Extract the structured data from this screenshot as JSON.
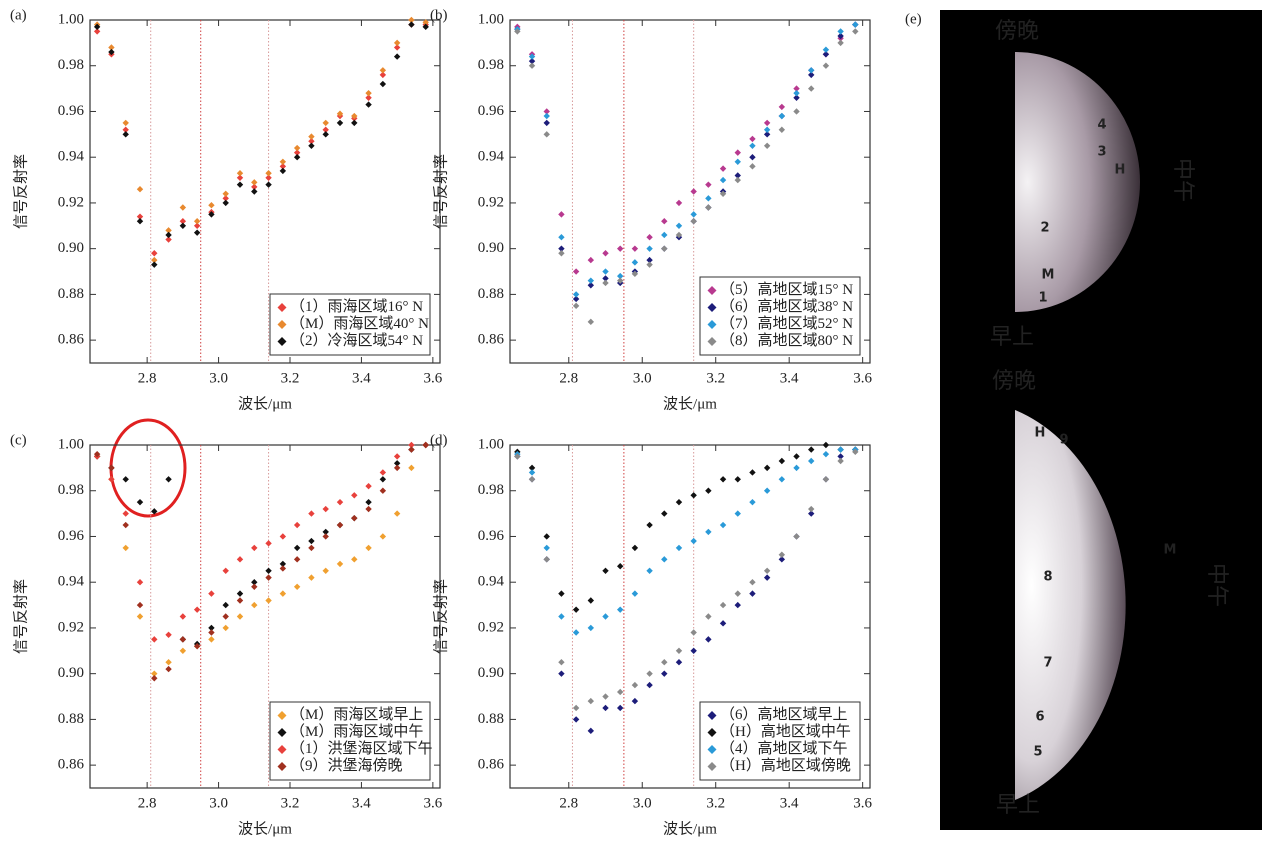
{
  "chart_data": [
    {
      "type": "scatter",
      "panel_label": "(a)",
      "xlabel": "波长/μm",
      "ylabel": "信号反射率",
      "xlim": [
        2.64,
        3.62
      ],
      "ylim": [
        0.85,
        1.0
      ],
      "xticks": [
        2.8,
        {
          "value": 3,
          "label": "3.0"
        },
        3.2,
        3.4,
        3.6
      ],
      "yticks": [
        0.86,
        0.88,
        {
          "value": 0.9,
          "label": "0.90"
        },
        0.92,
        0.94,
        0.96,
        0.98,
        {
          "value": 1,
          "label": "1.00"
        }
      ],
      "ref_lines": [
        2.81,
        2.95,
        3.14
      ],
      "x": [
        2.66,
        2.7,
        2.74,
        2.78,
        2.82,
        2.86,
        2.9,
        2.94,
        2.98,
        3.02,
        3.06,
        3.1,
        3.14,
        3.18,
        3.22,
        3.26,
        3.3,
        3.34,
        3.38,
        3.42,
        3.46,
        3.5,
        3.54,
        3.58
      ],
      "series": [
        {
          "name": "（1）雨海区域16° N",
          "color": "#e8413c",
          "values": [
            0.995,
            0.985,
            0.952,
            0.914,
            0.898,
            0.904,
            0.912,
            0.91,
            0.916,
            0.922,
            0.931,
            0.927,
            0.931,
            0.936,
            0.942,
            0.947,
            0.952,
            0.958,
            0.957,
            0.966,
            0.976,
            0.988,
            0.998,
            0.998
          ]
        },
        {
          "name": "（M）雨海区域40° N",
          "color": "#e8892f",
          "values": [
            0.998,
            0.988,
            0.955,
            0.926,
            0.895,
            0.908,
            0.918,
            0.912,
            0.919,
            0.924,
            0.933,
            0.929,
            0.933,
            0.938,
            0.944,
            0.949,
            0.955,
            0.959,
            0.958,
            0.968,
            0.978,
            0.99,
            1.0,
            0.999
          ]
        },
        {
          "name": "（2）冷海区域54° N",
          "color": "#111111",
          "values": [
            0.997,
            0.986,
            0.95,
            0.912,
            0.893,
            0.906,
            0.91,
            0.907,
            0.915,
            0.92,
            0.928,
            0.925,
            0.928,
            0.934,
            0.94,
            0.945,
            0.95,
            0.955,
            0.955,
            0.963,
            0.972,
            0.984,
            0.998,
            0.997
          ]
        }
      ]
    },
    {
      "type": "scatter",
      "panel_label": "(b)",
      "xlabel": "波长/μm",
      "ylabel": "信号反射率",
      "xlim": [
        2.64,
        3.62
      ],
      "ylim": [
        0.85,
        1.0
      ],
      "xticks": [
        2.8,
        {
          "value": 3,
          "label": "3.0"
        },
        3.2,
        3.4,
        3.6
      ],
      "yticks": [
        0.86,
        0.88,
        {
          "value": 0.9,
          "label": "0.90"
        },
        0.92,
        0.94,
        0.96,
        0.98,
        {
          "value": 1,
          "label": "1.00"
        }
      ],
      "ref_lines": [
        2.81,
        2.95,
        3.14
      ],
      "x": [
        2.66,
        2.7,
        2.74,
        2.78,
        2.82,
        2.86,
        2.9,
        2.94,
        2.98,
        3.02,
        3.06,
        3.1,
        3.14,
        3.18,
        3.22,
        3.26,
        3.3,
        3.34,
        3.38,
        3.42,
        3.46,
        3.5,
        3.54,
        3.58
      ],
      "series": [
        {
          "name": "（5）高地区域15° N",
          "color": "#b8398f",
          "values": [
            0.997,
            0.985,
            0.96,
            0.915,
            0.89,
            0.895,
            0.898,
            0.9,
            0.9,
            0.905,
            0.912,
            0.92,
            0.925,
            0.928,
            0.935,
            0.942,
            0.948,
            0.955,
            0.962,
            0.97,
            0.978,
            0.985,
            0.992,
            0.998
          ]
        },
        {
          "name": "（6）高地区域38° N",
          "color": "#1d1d7a",
          "values": [
            0.996,
            0.982,
            0.955,
            0.9,
            0.878,
            0.884,
            0.887,
            0.885,
            0.89,
            0.895,
            0.9,
            0.905,
            0.912,
            0.918,
            0.925,
            0.932,
            0.94,
            0.95,
            0.958,
            0.966,
            0.976,
            0.985,
            0.993,
            0.998
          ]
        },
        {
          "name": "（7）高地区域52° N",
          "color": "#2a9ad8",
          "values": [
            0.996,
            0.984,
            0.958,
            0.905,
            0.88,
            0.886,
            0.89,
            0.888,
            0.894,
            0.9,
            0.906,
            0.91,
            0.915,
            0.922,
            0.93,
            0.938,
            0.945,
            0.952,
            0.958,
            0.968,
            0.978,
            0.987,
            0.995,
            0.998
          ]
        },
        {
          "name": "（8）高地区域80° N",
          "color": "#8a8a8a",
          "values": [
            0.995,
            0.98,
            0.95,
            0.898,
            0.875,
            0.868,
            0.885,
            0.886,
            0.889,
            0.893,
            0.9,
            0.906,
            0.912,
            0.918,
            0.924,
            0.93,
            0.936,
            0.945,
            0.952,
            0.96,
            0.97,
            0.98,
            0.99,
            0.995
          ]
        }
      ]
    },
    {
      "type": "scatter",
      "panel_label": "(c)",
      "xlabel": "波长/μm",
      "ylabel": "信号反射率",
      "xlim": [
        2.64,
        3.62
      ],
      "ylim": [
        0.85,
        1.0
      ],
      "xticks": [
        2.8,
        {
          "value": 3,
          "label": "3.0"
        },
        3.2,
        3.4,
        3.6
      ],
      "yticks": [
        0.86,
        0.88,
        {
          "value": 0.9,
          "label": "0.90"
        },
        0.92,
        0.94,
        0.96,
        0.98,
        {
          "value": 1,
          "label": "1.00"
        }
      ],
      "ref_lines": [
        2.81,
        2.95,
        3.14
      ],
      "x": [
        2.66,
        2.7,
        2.74,
        2.78,
        2.82,
        2.86,
        2.9,
        2.94,
        2.98,
        3.02,
        3.06,
        3.1,
        3.14,
        3.18,
        3.22,
        3.26,
        3.3,
        3.34,
        3.38,
        3.42,
        3.46,
        3.5,
        3.54,
        3.58
      ],
      "series": [
        {
          "name": "（M）雨海区域早上",
          "color": "#f0a030",
          "values": [
            0.995,
            0.985,
            0.955,
            0.925,
            0.9,
            0.905,
            0.91,
            0.912,
            0.915,
            0.92,
            0.925,
            0.93,
            0.932,
            0.935,
            0.938,
            0.942,
            0.945,
            0.948,
            0.95,
            0.955,
            0.96,
            0.97,
            0.99,
            1.0
          ]
        },
        {
          "name": "（M）雨海区域中午",
          "color": "#111111",
          "values": [
            0.995,
            0.99,
            0.985,
            0.975,
            0.971,
            0.985,
            0.915,
            0.913,
            0.92,
            0.93,
            0.935,
            0.94,
            0.945,
            0.948,
            0.955,
            0.958,
            0.962,
            0.965,
            0.968,
            0.975,
            0.985,
            0.992,
            0.998,
            1.0
          ]
        },
        {
          "name": "（1）洪堡海区域下午",
          "color": "#e8413c",
          "values": [
            0.995,
            0.985,
            0.97,
            0.94,
            0.915,
            0.917,
            0.925,
            0.928,
            0.935,
            0.945,
            0.95,
            0.955,
            0.957,
            0.96,
            0.965,
            0.97,
            0.972,
            0.975,
            0.978,
            0.982,
            0.988,
            0.995,
            1.0,
            1.0
          ]
        },
        {
          "name": "（9）洪堡海傍晚",
          "color": "#a0301f",
          "values": [
            0.996,
            0.99,
            0.965,
            0.93,
            0.898,
            0.902,
            0.915,
            0.912,
            0.918,
            0.925,
            0.932,
            0.938,
            0.942,
            0.946,
            0.95,
            0.955,
            0.96,
            0.965,
            0.968,
            0.972,
            0.98,
            0.99,
            0.998,
            1.0
          ]
        }
      ]
    },
    {
      "type": "scatter",
      "panel_label": "(d)",
      "xlabel": "波长/μm",
      "ylabel": "信号反射率",
      "xlim": [
        2.64,
        3.62
      ],
      "ylim": [
        0.85,
        1.0
      ],
      "xticks": [
        2.8,
        {
          "value": 3,
          "label": "3.0"
        },
        3.2,
        3.4,
        3.6
      ],
      "yticks": [
        0.86,
        0.88,
        {
          "value": 0.9,
          "label": "0.90"
        },
        0.92,
        0.94,
        0.96,
        0.98,
        {
          "value": 1,
          "label": "1.00"
        }
      ],
      "ref_lines": [
        2.81,
        2.95,
        3.14
      ],
      "x": [
        2.66,
        2.7,
        2.74,
        2.78,
        2.82,
        2.86,
        2.9,
        2.94,
        2.98,
        3.02,
        3.06,
        3.1,
        3.14,
        3.18,
        3.22,
        3.26,
        3.3,
        3.34,
        3.38,
        3.42,
        3.46,
        3.5,
        3.54,
        3.58
      ],
      "series": [
        {
          "name": "（6）高地区域早上",
          "color": "#1d1d7a",
          "values": [
            0.995,
            0.985,
            0.95,
            0.9,
            0.88,
            0.875,
            0.885,
            0.885,
            0.888,
            0.895,
            0.9,
            0.905,
            0.91,
            0.915,
            0.922,
            0.93,
            0.935,
            0.942,
            0.95,
            0.96,
            0.97,
            0.985,
            0.995,
            0.998
          ]
        },
        {
          "name": "（H）高地区域中午",
          "color": "#111111",
          "values": [
            0.997,
            0.99,
            0.96,
            0.935,
            0.928,
            0.932,
            0.945,
            0.947,
            0.955,
            0.965,
            0.97,
            0.975,
            0.978,
            0.98,
            0.985,
            0.985,
            0.988,
            0.99,
            0.993,
            0.995,
            0.998,
            1.0,
            0.998,
            0.998
          ]
        },
        {
          "name": "（4）高地区域下午",
          "color": "#2a9ad8",
          "values": [
            0.996,
            0.988,
            0.955,
            0.925,
            0.918,
            0.92,
            0.925,
            0.928,
            0.935,
            0.945,
            0.95,
            0.955,
            0.958,
            0.962,
            0.965,
            0.97,
            0.975,
            0.98,
            0.985,
            0.99,
            0.993,
            0.996,
            0.998,
            0.998
          ]
        },
        {
          "name": "（H）高地区域傍晚",
          "color": "#8a8a8a",
          "values": [
            0.995,
            0.985,
            0.95,
            0.905,
            0.885,
            0.888,
            0.89,
            0.892,
            0.895,
            0.9,
            0.905,
            0.91,
            0.918,
            0.925,
            0.93,
            0.935,
            0.94,
            0.945,
            0.952,
            0.96,
            0.972,
            0.985,
            0.993,
            0.997
          ]
        }
      ]
    }
  ],
  "panel_e": {
    "label": "(e)",
    "upper": {
      "dusk": "傍晚",
      "noon": "中午",
      "morning": "早上",
      "sites": [
        "4",
        "3",
        "H",
        "2",
        "M",
        "1"
      ]
    },
    "lower": {
      "dusk": "傍晚",
      "noon": "中午",
      "morning": "早上",
      "sites": [
        "H",
        "9",
        "M",
        "8",
        "7",
        "6",
        "5"
      ]
    }
  }
}
